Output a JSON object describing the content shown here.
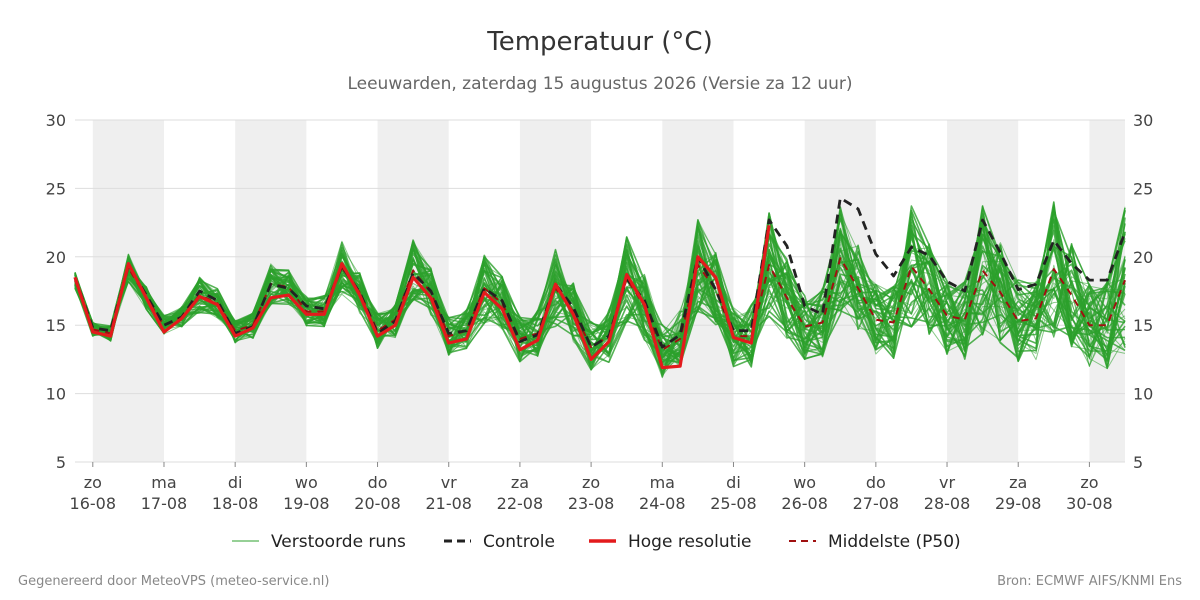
{
  "colors": {
    "ensemble": "#2ca02c",
    "control": "#222222",
    "hires": "#e31a1c",
    "median": "#a01010",
    "shade": "#efefef",
    "grid": "#dddddd"
  },
  "footer": {
    "left": "Gegenereerd door MeteoVPS (meteo-service.nl)",
    "right": "Bron: ECMWF AIFS/KNMI Ens"
  },
  "chart_data": {
    "type": "line",
    "title": "Temperatuur (°C)",
    "subtitle": "Leeuwarden, zaterdag 15 augustus 2026 (Versie za 12 uur)",
    "ylim": [
      5,
      30
    ],
    "yticks": [
      5,
      10,
      15,
      20,
      25,
      30
    ],
    "y_axis_both_sides": true,
    "x_start": "2026-08-15T18:00",
    "x_end": "2026-08-30T12:00",
    "step_hours": 6,
    "day_ticks": [
      {
        "date": "2026-08-16",
        "day": "zo",
        "label": "16-08"
      },
      {
        "date": "2026-08-17",
        "day": "ma",
        "label": "17-08"
      },
      {
        "date": "2026-08-18",
        "day": "di",
        "label": "18-08"
      },
      {
        "date": "2026-08-19",
        "day": "wo",
        "label": "19-08"
      },
      {
        "date": "2026-08-20",
        "day": "do",
        "label": "20-08"
      },
      {
        "date": "2026-08-21",
        "day": "vr",
        "label": "21-08"
      },
      {
        "date": "2026-08-22",
        "day": "za",
        "label": "22-08"
      },
      {
        "date": "2026-08-23",
        "day": "zo",
        "label": "23-08"
      },
      {
        "date": "2026-08-24",
        "day": "ma",
        "label": "24-08"
      },
      {
        "date": "2026-08-25",
        "day": "di",
        "label": "25-08"
      },
      {
        "date": "2026-08-26",
        "day": "wo",
        "label": "26-08"
      },
      {
        "date": "2026-08-27",
        "day": "do",
        "label": "27-08"
      },
      {
        "date": "2026-08-28",
        "day": "vr",
        "label": "28-08"
      },
      {
        "date": "2026-08-29",
        "day": "za",
        "label": "29-08"
      },
      {
        "date": "2026-08-30",
        "day": "zo",
        "label": "30-08"
      }
    ],
    "shaded_days": [
      "2026-08-16",
      "2026-08-18",
      "2026-08-20",
      "2026-08-22",
      "2026-08-24",
      "2026-08-26",
      "2026-08-28",
      "2026-08-30"
    ],
    "grid": true,
    "legend_position": "bottom",
    "legend": [
      {
        "key": "ensemble",
        "label": "Verstoorde runs",
        "style": "thin"
      },
      {
        "key": "control",
        "label": "Controle",
        "style": "dashed"
      },
      {
        "key": "hires",
        "label": "Hoge resolutie",
        "style": "solid"
      },
      {
        "key": "median",
        "label": "Middelste (P50)",
        "style": "dashed"
      }
    ],
    "series": [
      {
        "key": "hires",
        "name": "Hoge resolutie",
        "values": [
          18.5,
          14.5,
          14.2,
          19.5,
          17.0,
          14.5,
          15.5,
          17.1,
          16.5,
          14.2,
          14.8,
          17.0,
          17.2,
          15.8,
          15.8,
          19.5,
          17.2,
          14.2,
          15.0,
          18.5,
          17.0,
          13.7,
          14.0,
          17.4,
          16.2,
          13.2,
          13.9,
          18.0,
          15.8,
          12.5,
          13.8,
          18.7,
          16.5,
          11.9,
          12.0,
          20.0,
          18.5,
          14.1,
          13.7,
          22.3
        ]
      },
      {
        "key": "control",
        "name": "Controle",
        "values": [
          18.5,
          14.8,
          14.6,
          19.4,
          17.2,
          15.0,
          15.6,
          17.5,
          16.8,
          14.4,
          14.9,
          18.0,
          17.7,
          16.4,
          16.2,
          19.3,
          17.4,
          14.4,
          15.3,
          18.8,
          17.5,
          14.4,
          14.6,
          17.7,
          16.8,
          13.8,
          14.3,
          18.0,
          16.3,
          13.4,
          14.2,
          18.4,
          16.8,
          13.4,
          14.3,
          20.0,
          17.6,
          14.6,
          14.6,
          22.7,
          20.8,
          16.4,
          15.8,
          24.3,
          23.5,
          20.2,
          18.6,
          20.7,
          20.1,
          18.2,
          17.5,
          22.7,
          20.3,
          17.6,
          18.0,
          21.2,
          19.5,
          18.3,
          18.3,
          21.8
        ]
      },
      {
        "key": "median",
        "name": "Middelste (P50)",
        "values": [
          18.3,
          14.7,
          14.4,
          19.2,
          17.0,
          15.0,
          15.6,
          17.2,
          16.6,
          14.6,
          15.0,
          18.0,
          17.8,
          16.0,
          16.0,
          19.2,
          17.4,
          14.6,
          15.4,
          19.0,
          17.4,
          14.2,
          14.6,
          17.7,
          16.6,
          14.0,
          14.4,
          17.7,
          16.0,
          13.4,
          14.2,
          18.4,
          16.4,
          13.2,
          14.0,
          19.4,
          17.6,
          14.2,
          14.2,
          19.4,
          17.0,
          14.9,
          15.2,
          19.9,
          17.7,
          15.4,
          15.2,
          19.3,
          17.6,
          15.7,
          15.4,
          19.0,
          17.4,
          15.3,
          15.5,
          19.1,
          17.2,
          15.0,
          15.0,
          18.3
        ]
      }
    ]
  }
}
